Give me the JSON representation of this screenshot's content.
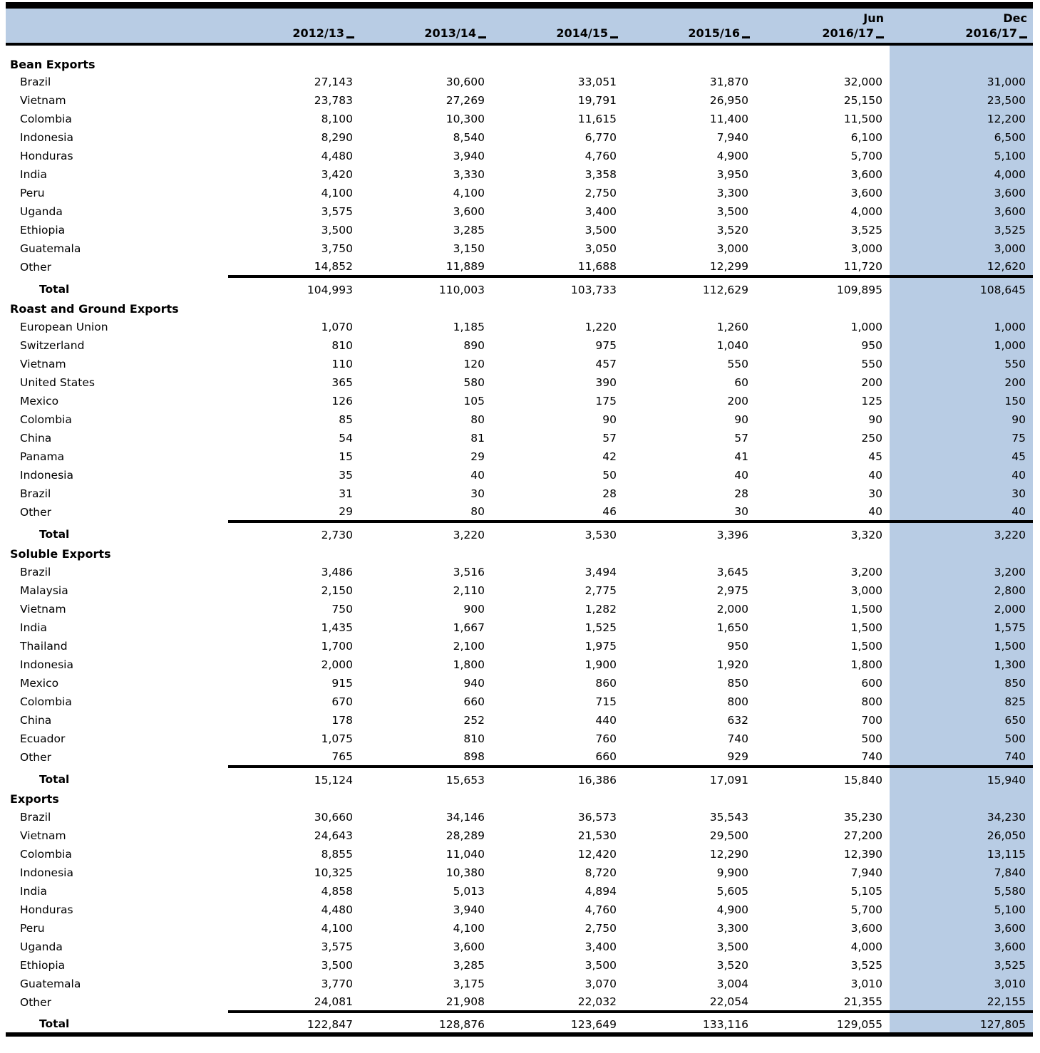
{
  "table": {
    "colors": {
      "header_bg": "#b8cce4",
      "highlight_column_bg": "#b8cce4",
      "rule": "#000000"
    },
    "header": {
      "cols": [
        {
          "prefix": "",
          "year": "2012/13"
        },
        {
          "prefix": "",
          "year": "2013/14"
        },
        {
          "prefix": "",
          "year": "2014/15"
        },
        {
          "prefix": "",
          "year": "2015/16"
        },
        {
          "prefix": "Jun",
          "year": "2016/17"
        },
        {
          "prefix": "Dec",
          "year": "2016/17"
        }
      ]
    },
    "sections": [
      {
        "title": "Bean Exports",
        "rows": [
          {
            "label": "Brazil",
            "values": [
              "27,143",
              "30,600",
              "33,051",
              "31,870",
              "32,000",
              "31,000"
            ]
          },
          {
            "label": "Vietnam",
            "values": [
              "23,783",
              "27,269",
              "19,791",
              "26,950",
              "25,150",
              "23,500"
            ]
          },
          {
            "label": "Colombia",
            "values": [
              "8,100",
              "10,300",
              "11,615",
              "11,400",
              "11,500",
              "12,200"
            ]
          },
          {
            "label": "Indonesia",
            "values": [
              "8,290",
              "8,540",
              "6,770",
              "7,940",
              "6,100",
              "6,500"
            ]
          },
          {
            "label": "Honduras",
            "values": [
              "4,480",
              "3,940",
              "4,760",
              "4,900",
              "5,700",
              "5,100"
            ]
          },
          {
            "label": "India",
            "values": [
              "3,420",
              "3,330",
              "3,358",
              "3,950",
              "3,600",
              "4,000"
            ]
          },
          {
            "label": "Peru",
            "values": [
              "4,100",
              "4,100",
              "2,750",
              "3,300",
              "3,600",
              "3,600"
            ]
          },
          {
            "label": "Uganda",
            "values": [
              "3,575",
              "3,600",
              "3,400",
              "3,500",
              "4,000",
              "3,600"
            ]
          },
          {
            "label": "Ethiopia",
            "values": [
              "3,500",
              "3,285",
              "3,500",
              "3,520",
              "3,525",
              "3,525"
            ]
          },
          {
            "label": "Guatemala",
            "values": [
              "3,750",
              "3,150",
              "3,050",
              "3,000",
              "3,000",
              "3,000"
            ]
          },
          {
            "label": "Other",
            "values": [
              "14,852",
              "11,889",
              "11,688",
              "12,299",
              "11,720",
              "12,620"
            ]
          }
        ],
        "total": {
          "label": "Total",
          "values": [
            "104,993",
            "110,003",
            "103,733",
            "112,629",
            "109,895",
            "108,645"
          ]
        }
      },
      {
        "title": "Roast and Ground Exports",
        "rows": [
          {
            "label": "European Union",
            "values": [
              "1,070",
              "1,185",
              "1,220",
              "1,260",
              "1,000",
              "1,000"
            ]
          },
          {
            "label": "Switzerland",
            "values": [
              "810",
              "890",
              "975",
              "1,040",
              "950",
              "1,000"
            ]
          },
          {
            "label": "Vietnam",
            "values": [
              "110",
              "120",
              "457",
              "550",
              "550",
              "550"
            ]
          },
          {
            "label": "United States",
            "values": [
              "365",
              "580",
              "390",
              "60",
              "200",
              "200"
            ]
          },
          {
            "label": "Mexico",
            "values": [
              "126",
              "105",
              "175",
              "200",
              "125",
              "150"
            ]
          },
          {
            "label": "Colombia",
            "values": [
              "85",
              "80",
              "90",
              "90",
              "90",
              "90"
            ]
          },
          {
            "label": "China",
            "values": [
              "54",
              "81",
              "57",
              "57",
              "250",
              "75"
            ]
          },
          {
            "label": "Panama",
            "values": [
              "15",
              "29",
              "42",
              "41",
              "45",
              "45"
            ]
          },
          {
            "label": "Indonesia",
            "values": [
              "35",
              "40",
              "50",
              "40",
              "40",
              "40"
            ]
          },
          {
            "label": "Brazil",
            "values": [
              "31",
              "30",
              "28",
              "28",
              "30",
              "30"
            ]
          },
          {
            "label": "Other",
            "values": [
              "29",
              "80",
              "46",
              "30",
              "40",
              "40"
            ]
          }
        ],
        "total": {
          "label": "Total",
          "values": [
            "2,730",
            "3,220",
            "3,530",
            "3,396",
            "3,320",
            "3,220"
          ]
        }
      },
      {
        "title": "Soluble Exports",
        "rows": [
          {
            "label": "Brazil",
            "values": [
              "3,486",
              "3,516",
              "3,494",
              "3,645",
              "3,200",
              "3,200"
            ]
          },
          {
            "label": "Malaysia",
            "values": [
              "2,150",
              "2,110",
              "2,775",
              "2,975",
              "3,000",
              "2,800"
            ]
          },
          {
            "label": "Vietnam",
            "values": [
              "750",
              "900",
              "1,282",
              "2,000",
              "1,500",
              "2,000"
            ]
          },
          {
            "label": "India",
            "values": [
              "1,435",
              "1,667",
              "1,525",
              "1,650",
              "1,500",
              "1,575"
            ]
          },
          {
            "label": "Thailand",
            "values": [
              "1,700",
              "2,100",
              "1,975",
              "950",
              "1,500",
              "1,500"
            ]
          },
          {
            "label": "Indonesia",
            "values": [
              "2,000",
              "1,800",
              "1,900",
              "1,920",
              "1,800",
              "1,300"
            ]
          },
          {
            "label": "Mexico",
            "values": [
              "915",
              "940",
              "860",
              "850",
              "600",
              "850"
            ]
          },
          {
            "label": "Colombia",
            "values": [
              "670",
              "660",
              "715",
              "800",
              "800",
              "825"
            ]
          },
          {
            "label": "China",
            "values": [
              "178",
              "252",
              "440",
              "632",
              "700",
              "650"
            ]
          },
          {
            "label": "Ecuador",
            "values": [
              "1,075",
              "810",
              "760",
              "740",
              "500",
              "500"
            ]
          },
          {
            "label": "Other",
            "values": [
              "765",
              "898",
              "660",
              "929",
              "740",
              "740"
            ]
          }
        ],
        "total": {
          "label": "Total",
          "values": [
            "15,124",
            "15,653",
            "16,386",
            "17,091",
            "15,840",
            "15,940"
          ]
        }
      },
      {
        "title": "Exports",
        "rows": [
          {
            "label": "Brazil",
            "values": [
              "30,660",
              "34,146",
              "36,573",
              "35,543",
              "35,230",
              "34,230"
            ]
          },
          {
            "label": "Vietnam",
            "values": [
              "24,643",
              "28,289",
              "21,530",
              "29,500",
              "27,200",
              "26,050"
            ]
          },
          {
            "label": "Colombia",
            "values": [
              "8,855",
              "11,040",
              "12,420",
              "12,290",
              "12,390",
              "13,115"
            ]
          },
          {
            "label": "Indonesia",
            "values": [
              "10,325",
              "10,380",
              "8,720",
              "9,900",
              "7,940",
              "7,840"
            ]
          },
          {
            "label": "India",
            "values": [
              "4,858",
              "5,013",
              "4,894",
              "5,605",
              "5,105",
              "5,580"
            ]
          },
          {
            "label": "Honduras",
            "values": [
              "4,480",
              "3,940",
              "4,760",
              "4,900",
              "5,700",
              "5,100"
            ]
          },
          {
            "label": "Peru",
            "values": [
              "4,100",
              "4,100",
              "2,750",
              "3,300",
              "3,600",
              "3,600"
            ]
          },
          {
            "label": "Uganda",
            "values": [
              "3,575",
              "3,600",
              "3,400",
              "3,500",
              "4,000",
              "3,600"
            ]
          },
          {
            "label": "Ethiopia",
            "values": [
              "3,500",
              "3,285",
              "3,500",
              "3,520",
              "3,525",
              "3,525"
            ]
          },
          {
            "label": "Guatemala",
            "values": [
              "3,770",
              "3,175",
              "3,070",
              "3,004",
              "3,010",
              "3,010"
            ]
          },
          {
            "label": "Other",
            "values": [
              "24,081",
              "21,908",
              "22,032",
              "22,054",
              "21,355",
              "22,155"
            ]
          }
        ],
        "total": {
          "label": "Total",
          "values": [
            "122,847",
            "128,876",
            "123,649",
            "133,116",
            "129,055",
            "127,805"
          ]
        }
      }
    ]
  }
}
